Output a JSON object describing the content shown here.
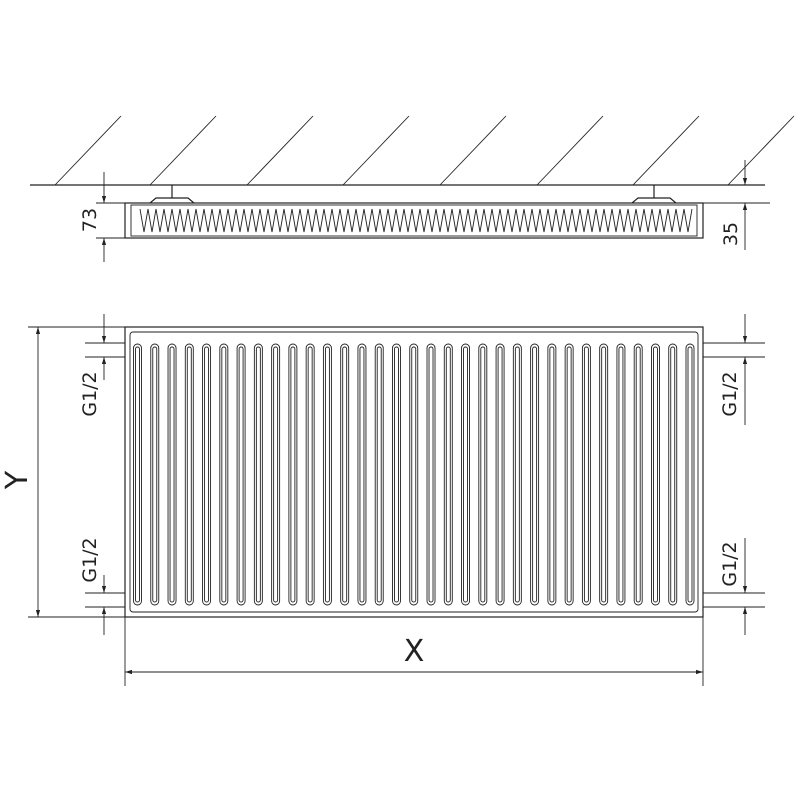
{
  "top_view": {
    "depth_label": "73",
    "ceiling_gap_label": "35"
  },
  "front_view": {
    "height_label": "Y",
    "width_label": "X",
    "connections": {
      "left_top": "G1/2",
      "left_bottom": "G1/2",
      "right_top": "G1/2",
      "right_bottom": "G1/2"
    },
    "channel_count": 33
  },
  "colors": {
    "line": "#222222",
    "background": "#ffffff"
  }
}
